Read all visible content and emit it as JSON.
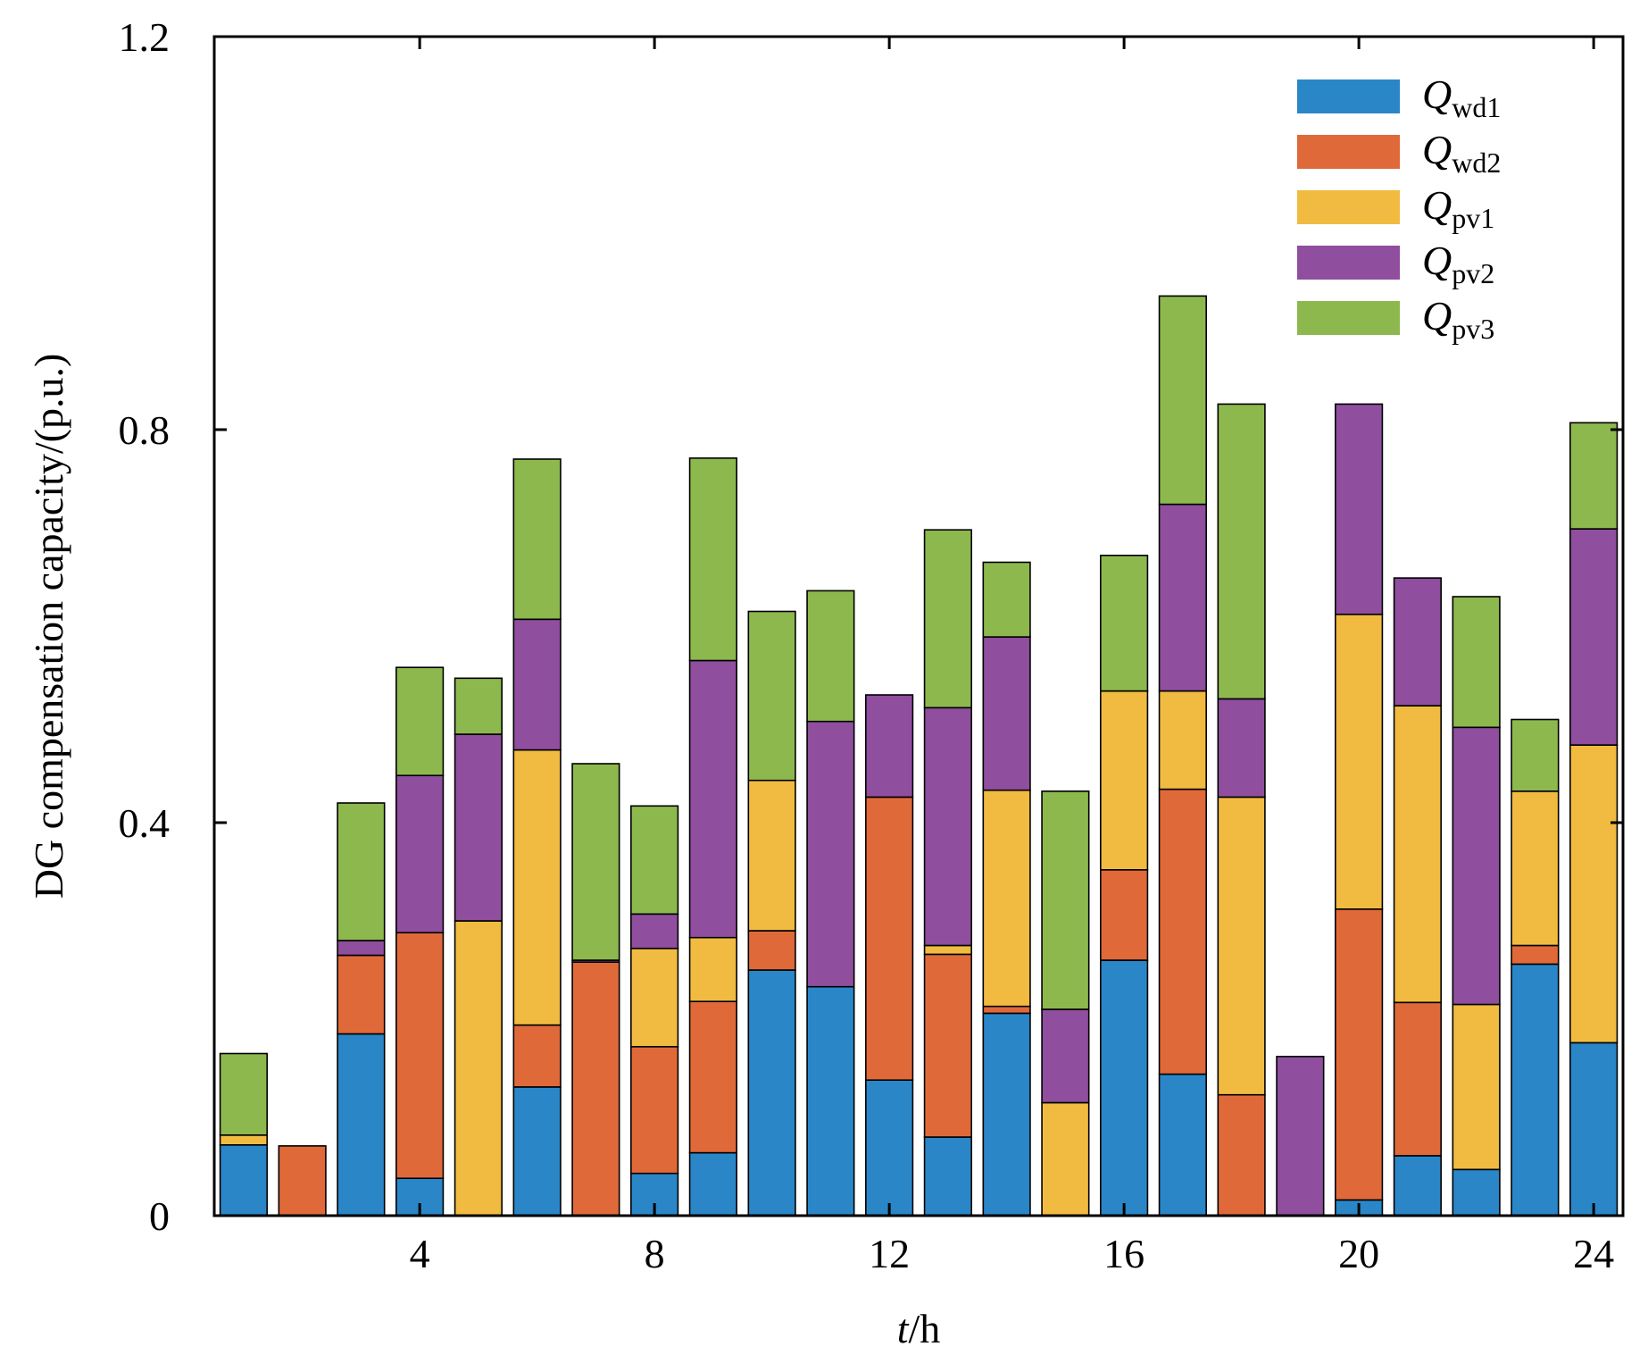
{
  "chart_data": {
    "type": "bar",
    "stacked": true,
    "title": "",
    "xlabel": {
      "italic": "t",
      "rest": "/h"
    },
    "ylabel": "DG compensation capacity/(p.u.)",
    "x": [
      1,
      2,
      3,
      4,
      5,
      6,
      7,
      8,
      9,
      10,
      11,
      12,
      13,
      14,
      15,
      16,
      17,
      18,
      19,
      20,
      21,
      22,
      23,
      24
    ],
    "xlim": [
      0.5,
      24.5
    ],
    "ylim": [
      0,
      1.2
    ],
    "xticks": [
      4,
      8,
      12,
      16,
      20,
      24
    ],
    "xtick_labels": [
      "4",
      "8",
      "12",
      "16",
      "20",
      "24"
    ],
    "yticks": [
      0,
      0.4,
      0.8,
      1.2
    ],
    "ytick_labels": [
      "0",
      "0.4",
      "0.8",
      "1.2"
    ],
    "legend_position": "top-right",
    "series": [
      {
        "name": "Q",
        "sub": "wd1",
        "color": "#2a86c7",
        "values": [
          0.072,
          0,
          0.185,
          0.038,
          0,
          0.131,
          0,
          0.043,
          0.064,
          0.25,
          0.233,
          0.138,
          0.08,
          0.206,
          0,
          0.26,
          0.144,
          0,
          0,
          0.016,
          0.061,
          0.047,
          0.256,
          0.176
        ]
      },
      {
        "name": "Q",
        "sub": "wd2",
        "color": "#e0693a",
        "values": [
          0,
          0.071,
          0.08,
          0.25,
          0,
          0.063,
          0.258,
          0.129,
          0.154,
          0.04,
          0,
          0.288,
          0.186,
          0.007,
          0,
          0.092,
          0.29,
          0.123,
          0,
          0.296,
          0.156,
          0,
          0.019,
          0
        ]
      },
      {
        "name": "Q",
        "sub": "pv1",
        "color": "#f0bb40",
        "values": [
          0.01,
          0,
          0,
          0,
          0.3,
          0.28,
          0,
          0.1,
          0.065,
          0.153,
          0,
          0,
          0.009,
          0.22,
          0.115,
          0.182,
          0.1,
          0.303,
          0,
          0.3,
          0.302,
          0.168,
          0.157,
          0.303
        ]
      },
      {
        "name": "Q",
        "sub": "pv2",
        "color": "#8f4e9e",
        "values": [
          0,
          0,
          0.015,
          0.16,
          0.19,
          0.133,
          0.002,
          0.035,
          0.282,
          0,
          0.27,
          0.104,
          0.242,
          0.156,
          0.095,
          0,
          0.19,
          0.1,
          0.162,
          0.214,
          0.13,
          0.282,
          0,
          0.22
        ]
      },
      {
        "name": "Q",
        "sub": "pv3",
        "color": "#8db84e",
        "values": [
          0.083,
          0,
          0.14,
          0.11,
          0.057,
          0.163,
          0.2,
          0.11,
          0.206,
          0.172,
          0.133,
          0,
          0.181,
          0.076,
          0.222,
          0.138,
          0.212,
          0.3,
          0,
          0,
          0,
          0.133,
          0.073,
          0.108
        ]
      }
    ]
  }
}
